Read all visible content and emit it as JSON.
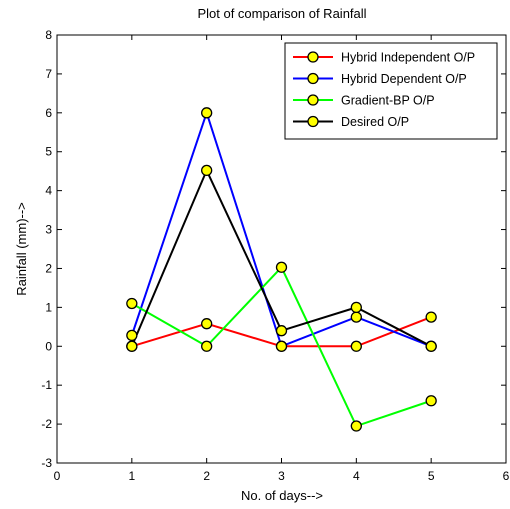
{
  "chart_data": {
    "type": "line",
    "title": "Plot of comparison of Rainfall",
    "xlabel": "No. of days-->",
    "ylabel": "Rainfall (mm)-->",
    "xlim": [
      0,
      6
    ],
    "ylim": [
      -3,
      8
    ],
    "xticks": [
      0,
      1,
      2,
      3,
      4,
      5,
      6
    ],
    "yticks": [
      -3,
      -2,
      -1,
      0,
      1,
      2,
      3,
      4,
      5,
      6,
      7,
      8
    ],
    "grid": false,
    "legend_position": "top-right",
    "marker_fill": "#ffff00",
    "x": [
      1,
      2,
      3,
      4,
      5
    ],
    "series": [
      {
        "name": "Hybrid Independent O/P",
        "color": "#ff0000",
        "values": [
          0,
          0.58,
          0,
          0,
          0.75
        ]
      },
      {
        "name": "Hybrid Dependent O/P",
        "color": "#0000ff",
        "values": [
          0.28,
          6.0,
          0,
          0.75,
          0
        ]
      },
      {
        "name": "Gradient-BP O/P",
        "color": "#00ff00",
        "values": [
          1.1,
          0,
          2.03,
          -2.05,
          -1.4
        ]
      },
      {
        "name": "Desired O/P",
        "color": "#000000",
        "values": [
          0,
          4.52,
          0.4,
          1.0,
          0
        ]
      }
    ]
  }
}
